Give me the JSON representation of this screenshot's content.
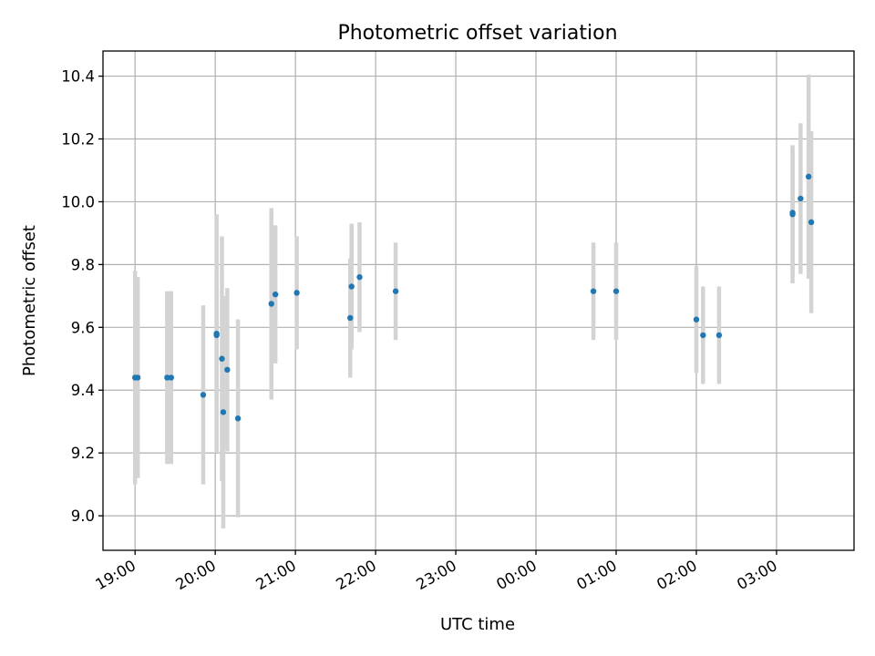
{
  "chart_data": {
    "type": "scatter",
    "title": "Photometric offset variation",
    "xlabel": "UTC time",
    "ylabel": "Photometric offset",
    "x_unit": "hours",
    "xlim": [
      "18:36",
      "03:58"
    ],
    "ylim": [
      8.89,
      10.48
    ],
    "x_ticks": [
      {
        "t": "19:00",
        "label": "19:00"
      },
      {
        "t": "20:00",
        "label": "20:00"
      },
      {
        "t": "21:00",
        "label": "21:00"
      },
      {
        "t": "22:00",
        "label": "22:00"
      },
      {
        "t": "23:00",
        "label": "23:00"
      },
      {
        "t": "00:00",
        "label": "00:00"
      },
      {
        "t": "01:00",
        "label": "01:00"
      },
      {
        "t": "02:00",
        "label": "02:00"
      },
      {
        "t": "03:00",
        "label": "03:00"
      }
    ],
    "y_ticks": [
      9.0,
      9.2,
      9.4,
      9.6,
      9.8,
      10.0,
      10.2,
      10.4
    ],
    "y_tick_labels": [
      "9.0",
      "9.2",
      "9.4",
      "9.6",
      "9.8",
      "10.0",
      "10.2",
      "10.4"
    ],
    "grid": true,
    "colors": {
      "point": "#1f77b4",
      "errorbar": "#d3d3d3"
    },
    "series": [
      {
        "points": [
          {
            "t": "19:00",
            "y": 9.44,
            "err": 0.34
          },
          {
            "t": "19:02",
            "y": 9.44,
            "err": 0.32
          },
          {
            "t": "19:24",
            "y": 9.44,
            "err": 0.275
          },
          {
            "t": "19:27",
            "y": 9.44,
            "err": 0.275
          },
          {
            "t": "19:51",
            "y": 9.385,
            "err": 0.285
          },
          {
            "t": "20:01",
            "y": 9.58,
            "err": 0.38
          },
          {
            "t": "20:01",
            "y": 9.575,
            "err": 0.2
          },
          {
            "t": "20:05",
            "y": 9.5,
            "err": 0.39
          },
          {
            "t": "20:06",
            "y": 9.33,
            "err": 0.37
          },
          {
            "t": "20:09",
            "y": 9.465,
            "err": 0.26
          },
          {
            "t": "20:17",
            "y": 9.31,
            "err": 0.315
          },
          {
            "t": "20:42",
            "y": 9.675,
            "err": 0.305
          },
          {
            "t": "20:45",
            "y": 9.705,
            "err": 0.22
          },
          {
            "t": "21:01",
            "y": 9.71,
            "err": 0.18
          },
          {
            "t": "21:41",
            "y": 9.63,
            "err": 0.19
          },
          {
            "t": "21:42",
            "y": 9.73,
            "err": 0.2
          },
          {
            "t": "21:48",
            "y": 9.76,
            "err": 0.175
          },
          {
            "t": "22:15",
            "y": 9.715,
            "err": 0.155
          },
          {
            "t": "00:43",
            "y": 9.715,
            "err": 0.155
          },
          {
            "t": "01:00",
            "y": 9.715,
            "err": 0.155
          },
          {
            "t": "02:00",
            "y": 9.625,
            "err": 0.17
          },
          {
            "t": "02:05",
            "y": 9.575,
            "err": 0.155
          },
          {
            "t": "02:17",
            "y": 9.575,
            "err": 0.155
          },
          {
            "t": "03:12",
            "y": 9.96,
            "err": 0.22
          },
          {
            "t": "03:12",
            "y": 9.965,
            "err": 0.2
          },
          {
            "t": "03:18",
            "y": 10.01,
            "err": 0.24
          },
          {
            "t": "03:24",
            "y": 10.08,
            "err": 0.325
          },
          {
            "t": "03:26",
            "y": 9.935,
            "err": 0.29
          }
        ]
      }
    ]
  }
}
